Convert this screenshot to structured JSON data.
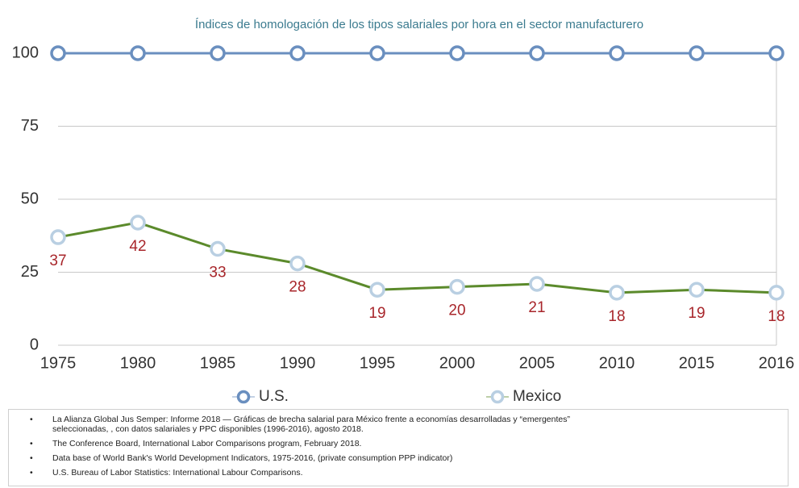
{
  "chart_data": {
    "type": "line",
    "title": "Índices de homologación de los tipos salariales por hora en el sector manufacturero",
    "categories": [
      "1975",
      "1980",
      "1985",
      "1990",
      "1995",
      "2000",
      "2005",
      "2010",
      "2015",
      "2016"
    ],
    "series": [
      {
        "name": "U.S.",
        "color": "#6a8fbf",
        "marker_color": "#6a8fbf",
        "values": [
          100,
          100,
          100,
          100,
          100,
          100,
          100,
          100,
          100,
          100
        ]
      },
      {
        "name": "Mexico",
        "color": "#5b8a2b",
        "marker_color": "#b9cfe2",
        "label_color": "#a8262b",
        "values": [
          37,
          42,
          33,
          28,
          19,
          20,
          21,
          18,
          19,
          18
        ]
      }
    ],
    "ylim": [
      0,
      100
    ],
    "yticks": [
      0,
      25,
      50,
      75,
      100
    ],
    "grid": true,
    "legend": "bottom",
    "sources": [
      "La Alianza Global Jus Semper: Informe 2018 — Gráficas de brecha salarial para México frente a economías desarrolladas y “emergentes” seleccionadas, , con datos salariales y PPC disponibles (1996-2016), agosto 2018.",
      "The Conference Board, International Labor Comparisons program, February 2018.",
      "Data base of World Bank's World Development Indicators, 1975-2016, (private consumption PPP indicator)",
      "U.S. Bureau of Labor Statistics: International Labour Comparisons."
    ]
  }
}
